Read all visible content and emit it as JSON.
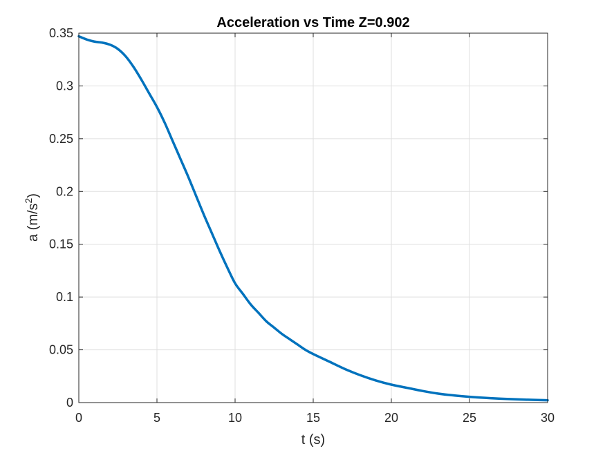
{
  "chart_data": {
    "type": "line",
    "title": "Acceleration vs Time Z=0.902",
    "xlabel": "t (s)",
    "ylabel_main": "a (m/s",
    "ylabel_sup": "2",
    "ylabel_tail": ")",
    "xlim": [
      0,
      30
    ],
    "ylim": [
      0,
      0.35
    ],
    "xticks": [
      0,
      5,
      10,
      15,
      20,
      25,
      30
    ],
    "xtick_labels": [
      "0",
      "5",
      "10",
      "15",
      "20",
      "25",
      "30"
    ],
    "yticks": [
      0,
      0.05,
      0.1,
      0.15,
      0.2,
      0.25,
      0.3,
      0.35
    ],
    "ytick_labels": [
      "0",
      "0.05",
      "0.1",
      "0.15",
      "0.2",
      "0.25",
      "0.3",
      "0.35"
    ],
    "grid": true,
    "line_color": "#0072BD",
    "series": [
      {
        "x": [
          0,
          0.5,
          1,
          1.5,
          2,
          2.5,
          3,
          3.5,
          4,
          4.5,
          5,
          5.5,
          6,
          6.5,
          7,
          7.5,
          8,
          8.5,
          9,
          9.5,
          10,
          10.5,
          11,
          11.5,
          12,
          12.5,
          13,
          13.5,
          14,
          14.5,
          15,
          16,
          17,
          18,
          19,
          20,
          21,
          22,
          23,
          24,
          25,
          26,
          27,
          28,
          29,
          30
        ],
        "y": [
          0.347,
          0.344,
          0.342,
          0.341,
          0.339,
          0.335,
          0.328,
          0.318,
          0.306,
          0.293,
          0.28,
          0.265,
          0.248,
          0.231,
          0.214,
          0.196,
          0.178,
          0.161,
          0.144,
          0.128,
          0.113,
          0.103,
          0.093,
          0.085,
          0.077,
          0.071,
          0.065,
          0.06,
          0.055,
          0.05,
          0.046,
          0.039,
          0.032,
          0.026,
          0.021,
          0.017,
          0.014,
          0.011,
          0.0085,
          0.0068,
          0.0055,
          0.0045,
          0.0037,
          0.0031,
          0.0026,
          0.0022
        ]
      }
    ]
  }
}
